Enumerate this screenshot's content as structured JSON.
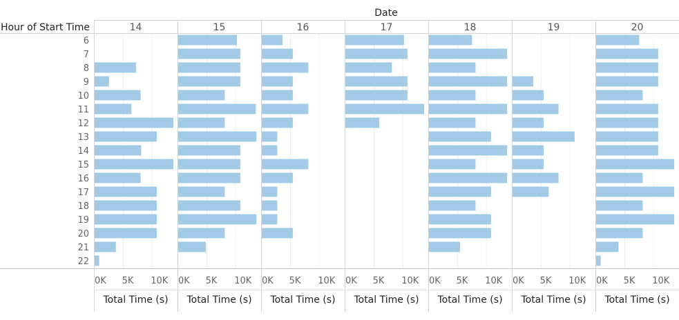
{
  "chart_data": {
    "type": "bar",
    "orientation": "horizontal",
    "title": "",
    "column_header": "Date",
    "row_header": "Hour of Start Time",
    "xlabel": "Total Time (s)",
    "x_ticks": [
      "0K",
      "5K",
      "10K"
    ],
    "xlim": [
      0,
      14000
    ],
    "grid": true,
    "bar_color": "#a3cbe7",
    "categories": [
      "6",
      "7",
      "8",
      "9",
      "10",
      "11",
      "12",
      "13",
      "14",
      "15",
      "16",
      "17",
      "18",
      "19",
      "20",
      "21",
      "22"
    ],
    "series": [
      {
        "name": "14",
        "values": [
          null,
          null,
          7200,
          2500,
          8000,
          6400,
          13700,
          10800,
          8100,
          13700,
          8000,
          10800,
          10800,
          10800,
          10800,
          3700,
          800
        ]
      },
      {
        "name": "15",
        "values": [
          10200,
          10800,
          10800,
          10800,
          8100,
          13500,
          8100,
          13600,
          10800,
          10800,
          10800,
          8100,
          10800,
          13600,
          8100,
          4800,
          null
        ]
      },
      {
        "name": "16",
        "values": [
          3600,
          5400,
          8100,
          5400,
          5400,
          8100,
          5400,
          2700,
          2700,
          8100,
          5400,
          2700,
          2700,
          2700,
          5400,
          null,
          null
        ]
      },
      {
        "name": "17",
        "values": [
          10200,
          10800,
          8100,
          10800,
          10800,
          13700,
          5900,
          null,
          null,
          null,
          null,
          null,
          null,
          null,
          null,
          null,
          null
        ]
      },
      {
        "name": "18",
        "values": [
          7500,
          13600,
          8100,
          13600,
          8100,
          13600,
          8100,
          10800,
          13600,
          8100,
          13600,
          10800,
          8100,
          10800,
          10800,
          5400,
          null
        ]
      },
      {
        "name": "19",
        "values": [
          null,
          null,
          null,
          3600,
          5400,
          8000,
          5400,
          10800,
          5400,
          5400,
          8000,
          6300,
          null,
          null,
          null,
          null,
          null
        ]
      },
      {
        "name": "20",
        "values": [
          7500,
          10800,
          10800,
          10800,
          8100,
          10800,
          10800,
          10800,
          10800,
          13600,
          8100,
          13600,
          8100,
          13600,
          8100,
          3900,
          800
        ]
      }
    ]
  }
}
